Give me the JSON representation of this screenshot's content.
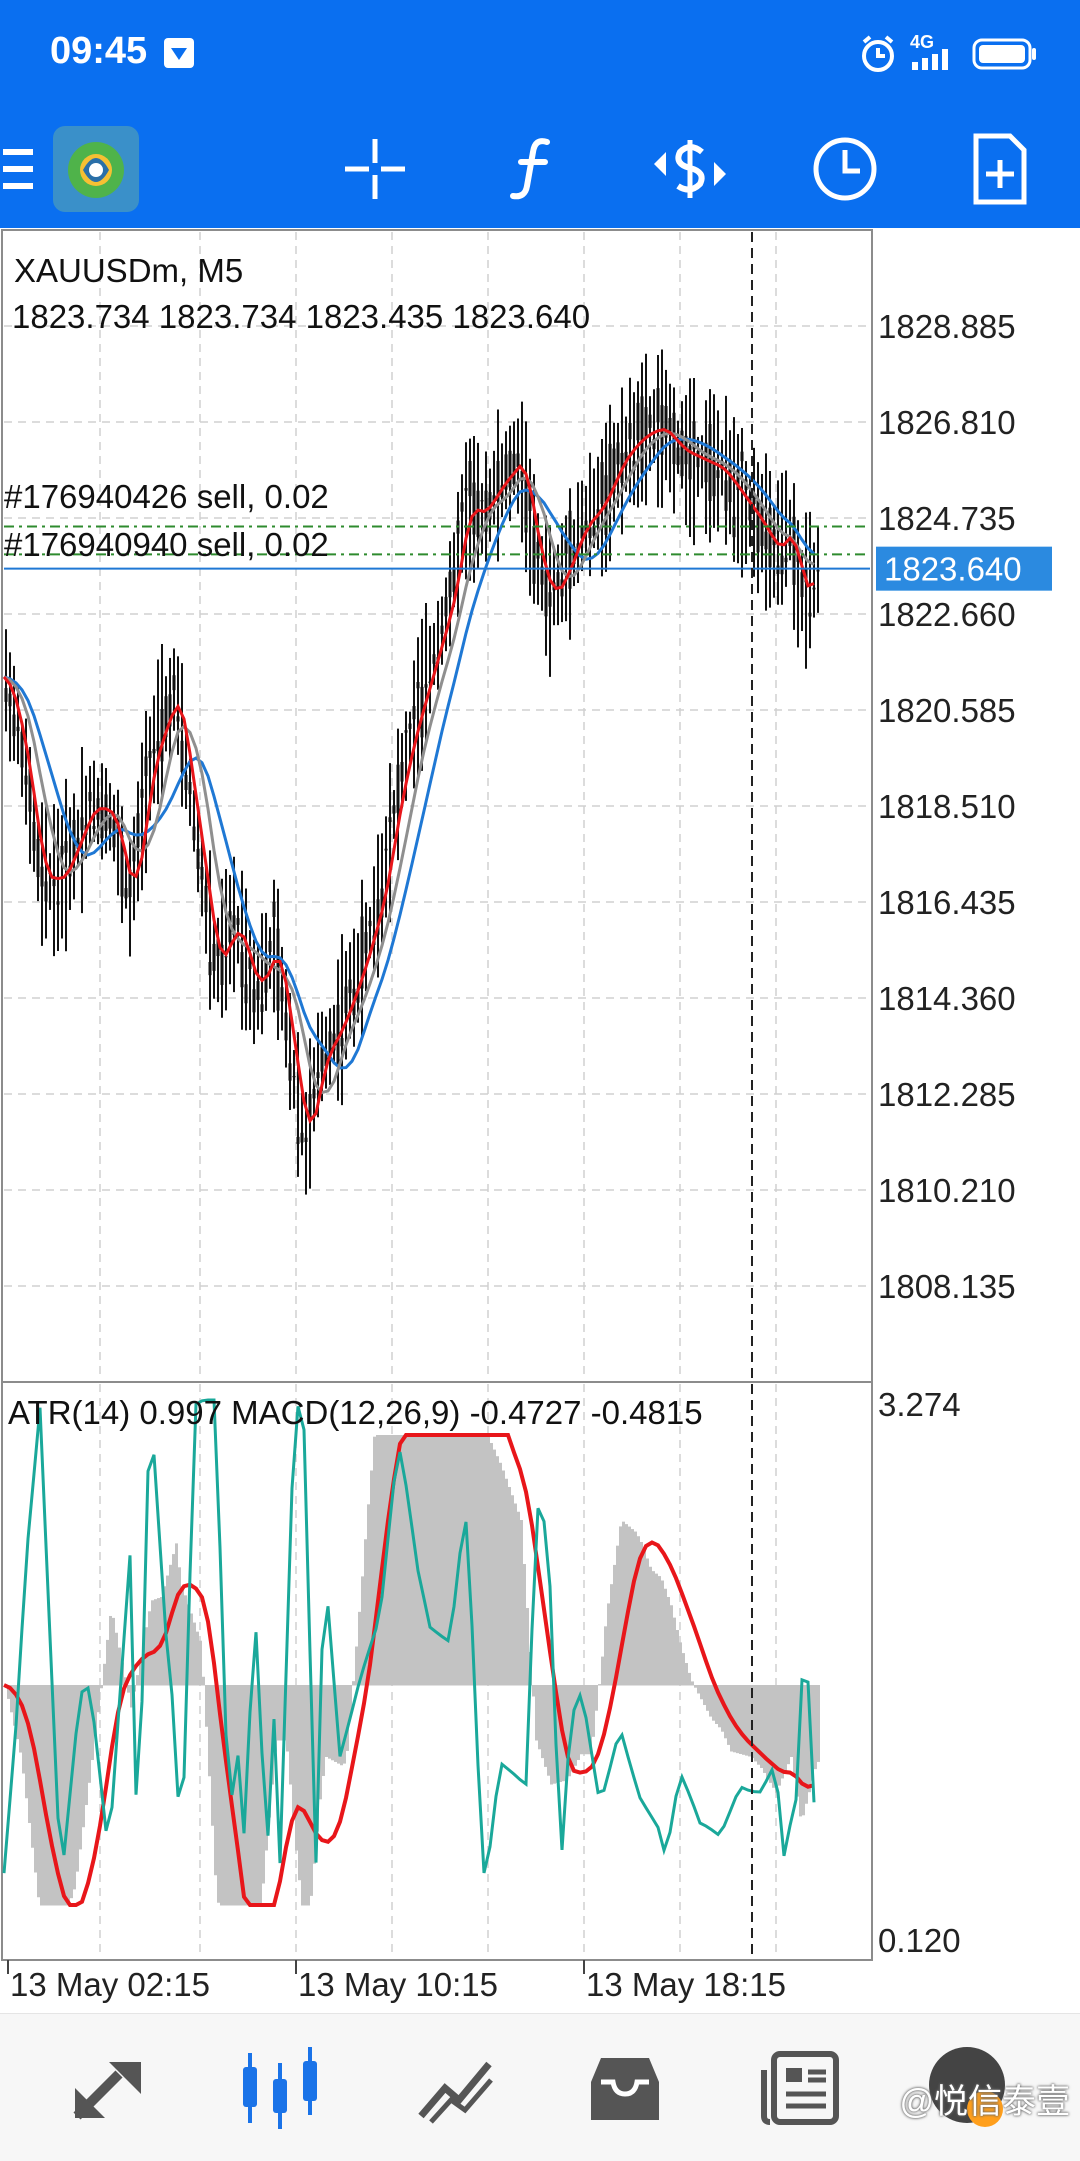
{
  "status_bar": {
    "time": "09:45",
    "network": "4G"
  },
  "toolbar": {
    "items": [
      "menu-icon",
      "app-logo-icon",
      "crosshair-icon",
      "function-icon",
      "trade-icon",
      "clock-icon",
      "new-chart-icon"
    ]
  },
  "chart": {
    "symbol_line": "XAUUSDm, M5",
    "ohlc_line": "1823.734 1823.734 1823.435 1823.640",
    "orders": [
      "#176940426 sell, 0.02",
      "#176940940 sell, 0.02"
    ],
    "current_price": "1823.640",
    "price_ticks": [
      "1828.885",
      "1826.810",
      "1824.735",
      "1822.660",
      "1820.585",
      "1818.510",
      "1816.435",
      "1814.360",
      "1812.285",
      "1810.210",
      "1808.135"
    ],
    "indicator_line": "ATR(14) 0.997 MACD(12,26,9) -0.4727 -0.4815",
    "indicator_ticks": [
      "3.274",
      "0.120"
    ],
    "time_labels": [
      "13 May 02:15",
      "13 May 10:15",
      "13 May 18:15"
    ],
    "colors": {
      "accent": "#0a6ff0",
      "ma_red": "#e8161a",
      "ma_gray": "#8f8f8f",
      "ma_blue": "#1f78d4",
      "atr_teal": "#1aa89a",
      "histogram": "#c3c3c3"
    }
  },
  "bottom_nav": {
    "items": [
      "quotes-icon",
      "chart-icon",
      "trade-icon",
      "history-icon",
      "news-icon"
    ]
  },
  "watermark": "@悦信泰壹"
}
